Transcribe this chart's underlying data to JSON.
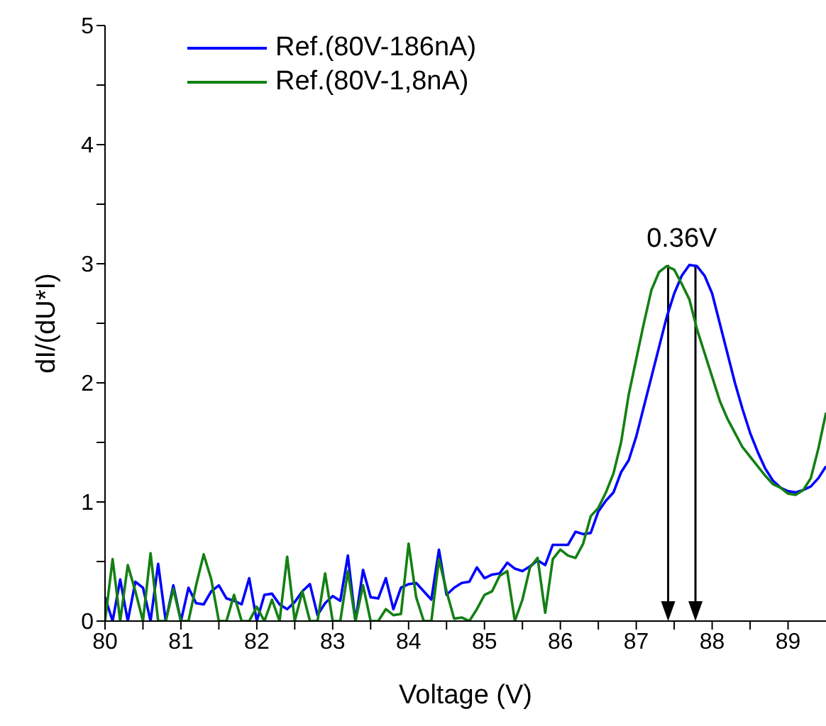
{
  "chart_data": {
    "type": "line",
    "xlabel": "Voltage (V)",
    "ylabel": "dI/(dU*I)",
    "x": [
      80.0,
      80.1,
      80.2,
      80.3,
      80.4,
      80.5,
      80.6,
      80.7,
      80.8,
      80.9,
      81.0,
      81.1,
      81.2,
      81.3,
      81.4,
      81.5,
      81.6,
      81.7,
      81.8,
      81.9,
      82.0,
      82.1,
      82.2,
      82.3,
      82.4,
      82.5,
      82.6,
      82.7,
      82.8,
      82.9,
      83.0,
      83.1,
      83.2,
      83.3,
      83.4,
      83.5,
      83.6,
      83.7,
      83.8,
      83.9,
      84.0,
      84.1,
      84.2,
      84.3,
      84.4,
      84.5,
      84.6,
      84.7,
      84.8,
      84.9,
      85.0,
      85.1,
      85.2,
      85.3,
      85.4,
      85.5,
      85.6,
      85.7,
      85.8,
      85.9,
      86.0,
      86.1,
      86.2,
      86.3,
      86.4,
      86.5,
      86.6,
      86.7,
      86.8,
      86.9,
      87.0,
      87.1,
      87.2,
      87.3,
      87.4,
      87.5,
      87.6,
      87.7,
      87.8,
      87.9,
      88.0,
      88.1,
      88.2,
      88.3,
      88.4,
      88.5,
      88.6,
      88.7,
      88.8,
      88.9,
      89.0,
      89.1,
      89.2,
      89.3,
      89.4,
      89.5
    ],
    "series": [
      {
        "name": "Ref.(80V-186nA)",
        "color": "#0000ff",
        "values": [
          0.2,
          0,
          0.35,
          0,
          0.33,
          0.28,
          0,
          0.48,
          0,
          0.3,
          0,
          0.28,
          0.15,
          0.14,
          0.25,
          0.3,
          0.19,
          0.17,
          0.14,
          0.36,
          0,
          0.22,
          0.23,
          0.14,
          0.1,
          0.16,
          0.25,
          0.31,
          0.05,
          0.15,
          0.21,
          0.17,
          0.55,
          0,
          0.43,
          0.2,
          0.19,
          0.36,
          0.1,
          0.28,
          0.31,
          0.32,
          0.25,
          0.18,
          0.6,
          0.22,
          0.28,
          0.32,
          0.33,
          0.45,
          0.36,
          0.39,
          0.4,
          0.49,
          0.44,
          0.42,
          0.46,
          0.51,
          0.47,
          0.64,
          0.64,
          0.64,
          0.75,
          0.73,
          0.74,
          0.92,
          1.01,
          1.08,
          1.25,
          1.35,
          1.55,
          1.8,
          2.05,
          2.3,
          2.55,
          2.75,
          2.9,
          2.99,
          2.98,
          2.9,
          2.75,
          2.5,
          2.25,
          2.0,
          1.78,
          1.58,
          1.42,
          1.28,
          1.18,
          1.12,
          1.09,
          1.08,
          1.1,
          1.13,
          1.2,
          1.3
        ]
      },
      {
        "name": "Ref.(80V-1,8nA)",
        "color": "#138013",
        "values": [
          0,
          0.52,
          0,
          0.47,
          0.25,
          0,
          0.57,
          0,
          0,
          0.27,
          0,
          0,
          0.3,
          0.56,
          0.35,
          0,
          0,
          0.22,
          0,
          0,
          0.12,
          0,
          0.18,
          0,
          0.54,
          0,
          0.25,
          0,
          0,
          0.4,
          0,
          0,
          0.42,
          0,
          0.3,
          0,
          0,
          0.1,
          0.05,
          0.06,
          0.65,
          0.2,
          0,
          0,
          0.52,
          0.25,
          0.02,
          0.03,
          0,
          0.1,
          0.22,
          0.25,
          0.38,
          0.42,
          0,
          0.18,
          0.45,
          0.53,
          0.07,
          0.52,
          0.6,
          0.55,
          0.53,
          0.65,
          0.88,
          0.95,
          1.08,
          1.24,
          1.5,
          1.9,
          2.2,
          2.5,
          2.78,
          2.93,
          2.98,
          2.95,
          2.83,
          2.7,
          2.45,
          2.25,
          2.05,
          1.85,
          1.7,
          1.58,
          1.46,
          1.38,
          1.3,
          1.22,
          1.15,
          1.12,
          1.07,
          1.06,
          1.1,
          1.2,
          1.45,
          1.75
        ]
      }
    ],
    "xlim": [
      80,
      89.5
    ],
    "xticks": [
      80,
      {
        "value": 80.5,
        "label": null
      },
      81,
      {
        "value": 81.5,
        "label": null
      },
      82,
      {
        "value": 82.5,
        "label": null
      },
      83,
      {
        "value": 83.5,
        "label": null
      },
      84,
      {
        "value": 84.5,
        "label": null
      },
      85,
      {
        "value": 85.5,
        "label": null
      },
      86,
      {
        "value": 86.5,
        "label": null
      },
      87,
      {
        "value": 87.5,
        "label": null
      },
      88,
      {
        "value": 88.5,
        "label": null
      },
      89
    ],
    "ylim": [
      0,
      5
    ],
    "yticks": [
      0,
      {
        "value": 0.5,
        "label": null
      },
      1,
      {
        "value": 1.5,
        "label": null
      },
      2,
      {
        "value": 2.5,
        "label": null
      },
      3,
      {
        "value": 3.5,
        "label": null
      },
      4,
      {
        "value": 4.5,
        "label": null
      },
      5
    ],
    "ref_lines": [
      {
        "axis": "x",
        "value": 87.42,
        "color": "#000000"
      },
      {
        "axis": "x",
        "value": 87.78,
        "color": "#000000"
      }
    ],
    "annotations": [
      "0.36V"
    ],
    "grid": false,
    "legend": "top",
    "marker": "none",
    "line_style": "solid"
  }
}
